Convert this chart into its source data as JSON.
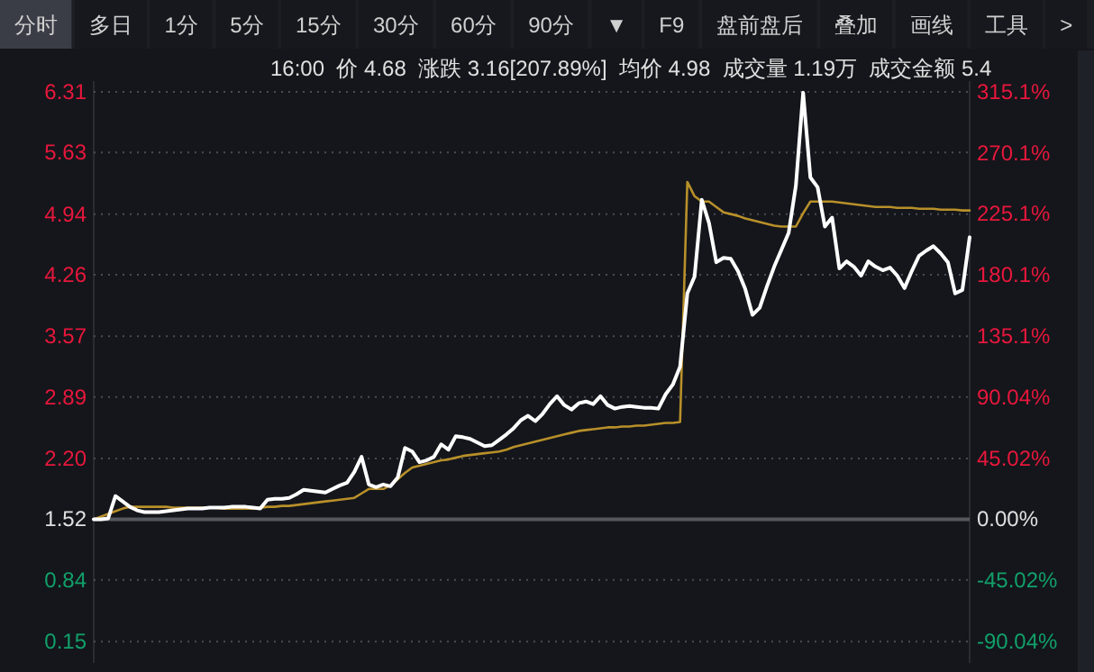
{
  "chart_data": {
    "type": "line",
    "subtitle": "16:00  价 4.68  涨跌 3.16[207.89%]  均价 4.98  成交量 1.19万  成交金额 5.4",
    "annotations": [
      "分时",
      "多日",
      "1分",
      "5分",
      "15分",
      "30分",
      "60分",
      "90分",
      "▼",
      "F9",
      "盘前盘后",
      "叠加",
      "画线",
      "工具",
      ">"
    ],
    "categories": [
      null,
      null,
      null,
      null,
      null,
      null,
      null,
      null,
      null,
      null,
      null,
      null,
      null,
      null,
      null,
      null,
      null,
      null,
      null,
      null,
      null,
      null,
      null,
      null,
      null,
      null,
      null,
      null,
      null,
      null,
      null,
      null,
      null,
      null,
      null,
      null,
      null,
      null,
      null,
      null,
      null,
      null,
      null,
      null,
      null,
      null,
      null,
      null,
      null,
      null,
      null,
      null,
      null,
      null,
      null,
      null,
      null,
      null,
      null,
      null,
      null,
      null,
      null,
      null,
      null,
      null,
      null,
      null,
      null,
      null,
      null,
      null,
      null,
      null,
      null,
      null,
      null,
      null,
      null,
      null,
      null,
      null,
      null,
      null,
      null,
      null,
      null,
      null,
      null,
      null,
      null,
      null,
      null,
      null,
      null,
      null,
      null,
      null,
      null,
      null,
      null,
      null,
      null,
      null,
      null,
      null,
      null,
      null,
      null,
      null,
      null,
      null,
      null,
      null,
      null,
      null,
      null,
      null,
      null,
      null,
      null,
      null
    ],
    "series": [
      {
        "color": "#ffffff",
        "values": [
          1.52,
          1.52,
          1.53,
          1.78,
          1.72,
          1.66,
          1.62,
          1.6,
          1.6,
          1.6,
          1.61,
          1.62,
          1.63,
          1.64,
          1.64,
          1.64,
          1.65,
          1.65,
          1.65,
          1.66,
          1.66,
          1.66,
          1.65,
          1.64,
          1.74,
          1.75,
          1.75,
          1.76,
          1.8,
          1.85,
          1.84,
          1.83,
          1.82,
          1.86,
          1.9,
          1.93,
          2.05,
          2.22,
          1.91,
          1.88,
          1.91,
          1.89,
          1.99,
          2.32,
          2.28,
          2.16,
          2.18,
          2.22,
          2.36,
          2.3,
          2.45,
          2.44,
          2.42,
          2.38,
          2.34,
          2.35,
          2.41,
          2.47,
          2.54,
          2.63,
          2.68,
          2.62,
          2.7,
          2.81,
          2.9,
          2.8,
          2.75,
          2.82,
          2.84,
          2.81,
          2.9,
          2.8,
          2.76,
          2.78,
          2.79,
          2.78,
          2.77,
          2.77,
          2.76,
          2.92,
          3.03,
          3.23,
          4.05,
          4.24,
          5.1,
          4.84,
          4.4,
          4.45,
          4.44,
          4.3,
          4.1,
          3.81,
          3.89,
          4.13,
          4.35,
          4.54,
          4.73,
          5.26,
          6.3,
          5.35,
          5.24,
          4.8,
          4.9,
          4.33,
          4.41,
          4.35,
          4.25,
          4.41,
          4.35,
          4.31,
          4.34,
          4.25,
          4.11,
          4.3,
          4.47,
          4.53,
          4.58,
          4.5,
          4.4,
          4.05,
          4.09,
          4.68
        ]
      },
      {
        "color": "#b8902a",
        "values": [
          1.52,
          1.55,
          1.58,
          1.61,
          1.64,
          1.66,
          1.66,
          1.66,
          1.66,
          1.66,
          1.66,
          1.65,
          1.65,
          1.65,
          1.65,
          1.65,
          1.65,
          1.65,
          1.64,
          1.64,
          1.64,
          1.64,
          1.64,
          1.65,
          1.66,
          1.66,
          1.67,
          1.67,
          1.68,
          1.69,
          1.7,
          1.71,
          1.72,
          1.73,
          1.74,
          1.75,
          1.76,
          1.81,
          1.86,
          1.86,
          1.86,
          1.9,
          1.97,
          2.04,
          2.1,
          2.12,
          2.14,
          2.16,
          2.18,
          2.19,
          2.21,
          2.23,
          2.24,
          2.25,
          2.26,
          2.27,
          2.28,
          2.3,
          2.33,
          2.35,
          2.37,
          2.39,
          2.41,
          2.43,
          2.45,
          2.47,
          2.49,
          2.51,
          2.52,
          2.53,
          2.54,
          2.55,
          2.55,
          2.56,
          2.56,
          2.57,
          2.57,
          2.58,
          2.59,
          2.6,
          2.6,
          2.61,
          5.3,
          5.14,
          5.08,
          5.08,
          5.02,
          4.96,
          4.94,
          4.92,
          4.89,
          4.87,
          4.85,
          4.83,
          4.81,
          4.8,
          4.8,
          4.8,
          4.95,
          5.08,
          5.08,
          5.08,
          5.08,
          5.07,
          5.06,
          5.05,
          5.04,
          5.03,
          5.02,
          5.02,
          5.02,
          5.01,
          5.01,
          5.01,
          5.0,
          5.0,
          5.0,
          4.99,
          4.99,
          4.99,
          4.98,
          4.98
        ]
      }
    ],
    "ylim": [
      -0.09,
      6.43
    ],
    "yticks": [
      {
        "value": 0.15,
        "label": "0.15"
      },
      {
        "value": 0.84,
        "label": "0.84"
      },
      {
        "value": 1.52,
        "label": "1.52"
      },
      {
        "value": 2.2,
        "label": "2.20"
      },
      {
        "value": 2.89,
        "label": "2.89"
      },
      {
        "value": 3.57,
        "label": "3.57"
      },
      {
        "value": 4.26,
        "label": "4.26"
      },
      {
        "value": 4.94,
        "label": "4.94"
      },
      {
        "value": 5.63,
        "label": "5.63"
      },
      {
        "value": 6.31,
        "label": "6.31"
      }
    ],
    "y2lim": [
      -105.9,
      323.0
    ],
    "y2ticks": [
      {
        "value": -90.04,
        "label": "-90.04%"
      },
      {
        "value": -45.02,
        "label": "-45.02%"
      },
      {
        "value": 0,
        "label": "0.00%"
      },
      {
        "value": 45.02,
        "label": "45.02%"
      },
      {
        "value": 90.04,
        "label": "90.04%"
      },
      {
        "value": 135.1,
        "label": "135.1%"
      },
      {
        "value": 180.1,
        "label": "180.1%"
      },
      {
        "value": 225.1,
        "label": "225.1%"
      },
      {
        "value": 270.1,
        "label": "270.1%"
      },
      {
        "value": 315.1,
        "label": "315.1%"
      }
    ],
    "ref_lines": [
      {
        "axis": "y",
        "value": 1.52
      }
    ],
    "tick_labels": "y",
    "grid": "y"
  }
}
